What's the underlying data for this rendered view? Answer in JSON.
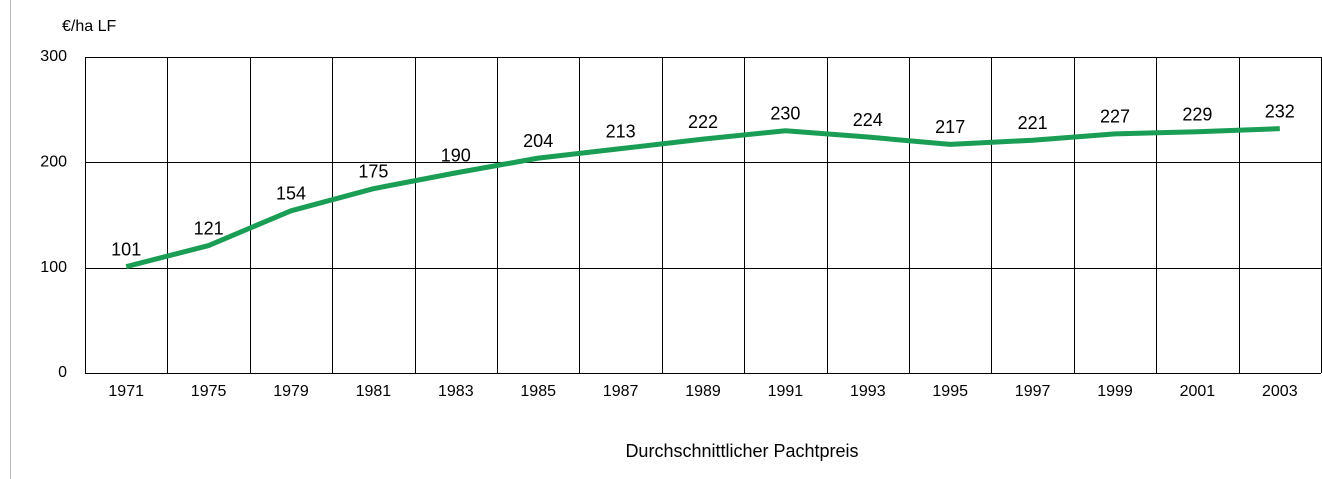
{
  "chart_data": {
    "type": "line",
    "ylabel": "€/ha LF",
    "xlabel": "Durchschnittlicher Pachtpreis",
    "categories": [
      "1971",
      "1975",
      "1979",
      "1981",
      "1983",
      "1985",
      "1987",
      "1989",
      "1991",
      "1993",
      "1995",
      "1997",
      "1999",
      "2001",
      "2003"
    ],
    "series": [
      {
        "color": "#1a9e55",
        "values": [
          101,
          121,
          154,
          175,
          190,
          204,
          213,
          222,
          230,
          224,
          217,
          221,
          227,
          229,
          232
        ]
      }
    ],
    "ylim": [
      0,
      300
    ],
    "yticks": [
      0,
      100,
      200,
      300
    ],
    "grid": true
  }
}
